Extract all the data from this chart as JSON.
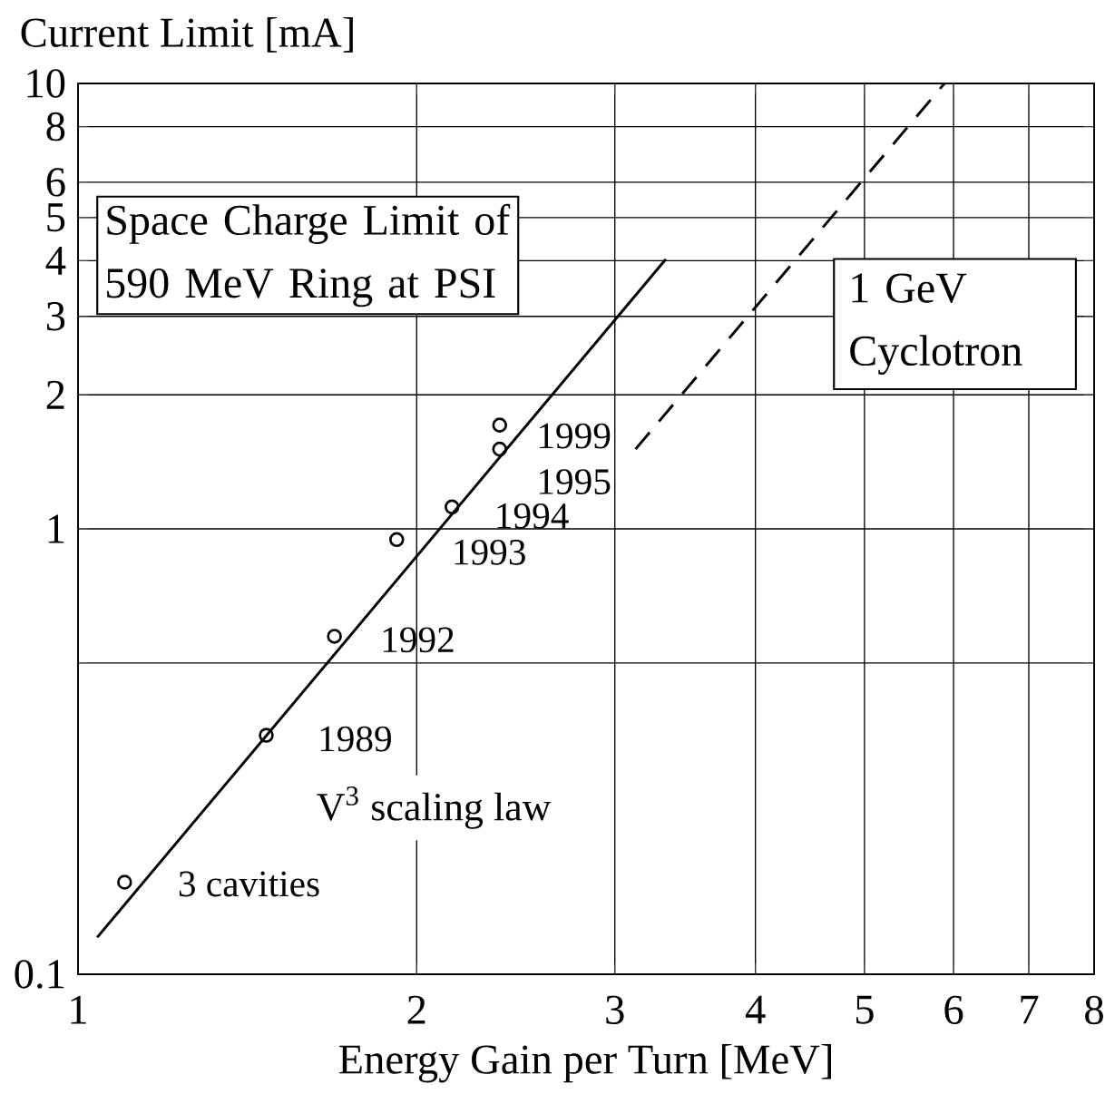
{
  "chart_data": {
    "type": "scatter",
    "xlabel": "Energy Gain per Turn [MeV]",
    "ylabel": "Current Limit [mA]",
    "log": "xy",
    "grid": true,
    "xlim": [
      1,
      8
    ],
    "ylim": [
      0.1,
      10
    ],
    "xticks": [
      1,
      2,
      3,
      4,
      5,
      6,
      7,
      8
    ],
    "yticks": [
      0.1,
      {
        "value": 0.5,
        "label": null
      },
      1,
      2,
      3,
      4,
      5,
      6,
      8,
      10
    ],
    "series": [
      {
        "marker": "circle",
        "color": "#000000",
        "x": [
          1.1,
          1.47,
          1.69,
          1.92,
          2.15,
          2.37,
          2.37
        ],
        "values": [
          0.161,
          0.344,
          0.574,
          0.946,
          1.12,
          1.51,
          1.71
        ]
      },
      {
        "type": "line",
        "line_style": "solid",
        "color": "#000000",
        "x": [
          1.04,
          3.33
        ],
        "values": [
          0.121,
          4.03
        ]
      },
      {
        "type": "line",
        "line_style": "dashed",
        "color": "#000000",
        "x": [
          3.13,
          5.89
        ],
        "values": [
          1.51,
          10
        ]
      }
    ],
    "annotations": [
      "Space Charge Limit of 590 MeV Ring at PSI",
      "1 GeV Cyclotron",
      "V$^{3}$ scaling law",
      {
        "text": "1999",
        "x": 2.37,
        "y": 1.71
      },
      {
        "text": "1995",
        "x": 2.37,
        "y": 1.51
      },
      {
        "text": "1994",
        "x": 2.15,
        "y": 1.12
      },
      {
        "text": "1993",
        "x": 1.92,
        "y": 0.946
      },
      {
        "text": "1992",
        "x": 1.69,
        "y": 0.574
      },
      {
        "text": "1989",
        "x": 1.47,
        "y": 0.344
      },
      {
        "text": "3 cavities",
        "x": 1.1,
        "y": 0.161
      }
    ]
  }
}
